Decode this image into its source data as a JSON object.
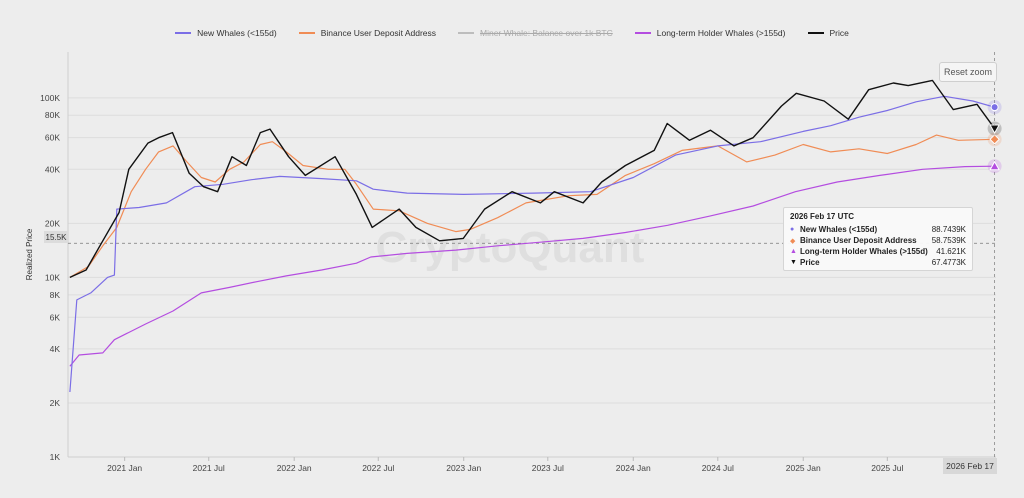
{
  "legend": [
    {
      "label": "New Whales (<155d)",
      "color": "#7b6ee6",
      "hidden": false
    },
    {
      "label": "Binance User Deposit Address",
      "color": "#f08c55",
      "hidden": false
    },
    {
      "label": "Miner Whale: Balance over 1k BTC",
      "color": "#bdbdbd",
      "hidden": true
    },
    {
      "label": "Long-term Holder Whales (>155d)",
      "color": "#b44de0",
      "hidden": false
    },
    {
      "label": "Price",
      "color": "#111111",
      "hidden": false
    }
  ],
  "reset_zoom_label": "Reset zoom",
  "watermark": "CryptoQuant",
  "horizontal_line_label": "15.5K",
  "date_flag": "2026 Feb 17",
  "tooltip": {
    "title": "2026 Feb 17 UTC",
    "rows": [
      {
        "marker": "●",
        "color": "#7b6ee6",
        "name": "New Whales (<155d)",
        "value": "88.7439K"
      },
      {
        "marker": "◆",
        "color": "#f08c55",
        "name": "Binance User Deposit Address",
        "value": "58.7539K"
      },
      {
        "marker": "▲",
        "color": "#b44de0",
        "name": "Long-term Holder Whales (>155d)",
        "value": "41.621K"
      },
      {
        "marker": "▼",
        "color": "#111111",
        "name": "Price",
        "value": "67.4773K"
      }
    ]
  },
  "chart_data": {
    "type": "line",
    "ylabel": "Realized Price",
    "yscale": "log",
    "ylim": [
      1000,
      180000
    ],
    "y_ticks": [
      {
        "v": 1000,
        "label": "1K"
      },
      {
        "v": 2000,
        "label": "2K"
      },
      {
        "v": 4000,
        "label": "4K"
      },
      {
        "v": 6000,
        "label": "6K"
      },
      {
        "v": 8000,
        "label": "8K"
      },
      {
        "v": 10000,
        "label": "10K"
      },
      {
        "v": 20000,
        "label": "20K"
      },
      {
        "v": 40000,
        "label": "40K"
      },
      {
        "v": 60000,
        "label": "60K"
      },
      {
        "v": 80000,
        "label": "80K"
      },
      {
        "v": 100000,
        "label": "100K"
      }
    ],
    "xlim": [
      "2020-09-01",
      "2026-02-20"
    ],
    "x_ticks": [
      {
        "d": "2021-01-01",
        "label": "2021 Jan"
      },
      {
        "d": "2021-07-01",
        "label": "2021 Jul"
      },
      {
        "d": "2022-01-01",
        "label": "2022 Jan"
      },
      {
        "d": "2022-07-01",
        "label": "2022 Jul"
      },
      {
        "d": "2023-01-01",
        "label": "2023 Jan"
      },
      {
        "d": "2023-07-01",
        "label": "2023 Jul"
      },
      {
        "d": "2024-01-01",
        "label": "2024 Jan"
      },
      {
        "d": "2024-07-01",
        "label": "2024 Jul"
      },
      {
        "d": "2025-01-01",
        "label": "2025 Jan"
      },
      {
        "d": "2025-07-01",
        "label": "2025 Jul"
      }
    ],
    "hline": 15500,
    "cursor_date": "2026-02-17",
    "series": [
      {
        "name": "New Whales (<155d)",
        "color": "#7b6ee6",
        "marker": "circle",
        "points": [
          [
            "2020-09-05",
            2300
          ],
          [
            "2020-09-20",
            7500
          ],
          [
            "2020-10-20",
            8200
          ],
          [
            "2020-11-25",
            10000
          ],
          [
            "2020-12-10",
            10300
          ],
          [
            "2020-12-15",
            24000
          ],
          [
            "2021-02-01",
            24500
          ],
          [
            "2021-04-01",
            26000
          ],
          [
            "2021-06-01",
            32000
          ],
          [
            "2021-08-01",
            33000
          ],
          [
            "2021-10-01",
            35000
          ],
          [
            "2021-12-01",
            36500
          ],
          [
            "2022-03-01",
            35500
          ],
          [
            "2022-05-15",
            34500
          ],
          [
            "2022-06-20",
            31000
          ],
          [
            "2022-09-01",
            29500
          ],
          [
            "2023-01-01",
            29000
          ],
          [
            "2023-06-01",
            29500
          ],
          [
            "2023-10-01",
            30000
          ],
          [
            "2024-01-01",
            36000
          ],
          [
            "2024-04-01",
            48000
          ],
          [
            "2024-07-01",
            54000
          ],
          [
            "2024-10-01",
            57000
          ],
          [
            "2025-01-01",
            65000
          ],
          [
            "2025-03-01",
            70000
          ],
          [
            "2025-05-01",
            78000
          ],
          [
            "2025-07-01",
            85000
          ],
          [
            "2025-09-01",
            95000
          ],
          [
            "2025-11-01",
            102000
          ],
          [
            "2026-01-01",
            96000
          ],
          [
            "2026-02-17",
            88744
          ]
        ]
      },
      {
        "name": "Binance User Deposit Address",
        "color": "#f08c55",
        "marker": "diamond",
        "points": [
          [
            "2020-09-05",
            10000
          ],
          [
            "2020-10-15",
            11500
          ],
          [
            "2020-11-15",
            15000
          ],
          [
            "2020-12-15",
            19000
          ],
          [
            "2021-01-15",
            30000
          ],
          [
            "2021-02-15",
            40000
          ],
          [
            "2021-03-15",
            50000
          ],
          [
            "2021-04-15",
            54000
          ],
          [
            "2021-05-15",
            44000
          ],
          [
            "2021-06-15",
            36000
          ],
          [
            "2021-07-15",
            34000
          ],
          [
            "2021-08-15",
            40000
          ],
          [
            "2021-09-15",
            44000
          ],
          [
            "2021-10-20",
            55000
          ],
          [
            "2021-11-15",
            57000
          ],
          [
            "2021-12-15",
            50000
          ],
          [
            "2022-01-20",
            42000
          ],
          [
            "2022-03-15",
            40000
          ],
          [
            "2022-04-20",
            40000
          ],
          [
            "2022-05-15",
            33000
          ],
          [
            "2022-06-20",
            24000
          ],
          [
            "2022-08-15",
            23500
          ],
          [
            "2022-10-15",
            20000
          ],
          [
            "2022-12-15",
            18000
          ],
          [
            "2023-01-15",
            18500
          ],
          [
            "2023-03-15",
            21500
          ],
          [
            "2023-05-15",
            26000
          ],
          [
            "2023-08-15",
            28500
          ],
          [
            "2023-10-15",
            29000
          ],
          [
            "2023-12-15",
            37000
          ],
          [
            "2024-02-15",
            43000
          ],
          [
            "2024-04-15",
            51000
          ],
          [
            "2024-07-01",
            54000
          ],
          [
            "2024-09-01",
            44000
          ],
          [
            "2024-11-01",
            48000
          ],
          [
            "2025-01-01",
            55000
          ],
          [
            "2025-03-01",
            50000
          ],
          [
            "2025-05-01",
            52000
          ],
          [
            "2025-07-01",
            49000
          ],
          [
            "2025-09-01",
            55000
          ],
          [
            "2025-10-15",
            62000
          ],
          [
            "2025-12-01",
            58000
          ],
          [
            "2026-02-17",
            58754
          ]
        ]
      },
      {
        "name": "Long-term Holder Whales (>155d)",
        "color": "#b44de0",
        "marker": "triangle-up",
        "points": [
          [
            "2020-09-05",
            3200
          ],
          [
            "2020-09-25",
            3700
          ],
          [
            "2020-11-15",
            3800
          ],
          [
            "2020-12-10",
            4500
          ],
          [
            "2021-02-15",
            5500
          ],
          [
            "2021-04-15",
            6500
          ],
          [
            "2021-06-15",
            8200
          ],
          [
            "2021-08-15",
            8800
          ],
          [
            "2021-10-15",
            9500
          ],
          [
            "2021-12-15",
            10200
          ],
          [
            "2022-03-01",
            11000
          ],
          [
            "2022-05-15",
            12000
          ],
          [
            "2022-06-15",
            13000
          ],
          [
            "2022-09-01",
            13600
          ],
          [
            "2022-12-15",
            14200
          ],
          [
            "2023-03-15",
            15000
          ],
          [
            "2023-06-15",
            15700
          ],
          [
            "2023-09-15",
            16500
          ],
          [
            "2023-12-15",
            17800
          ],
          [
            "2024-03-15",
            19500
          ],
          [
            "2024-06-15",
            22000
          ],
          [
            "2024-09-15",
            25000
          ],
          [
            "2024-12-15",
            30000
          ],
          [
            "2025-03-15",
            34000
          ],
          [
            "2025-06-15",
            37000
          ],
          [
            "2025-09-15",
            40000
          ],
          [
            "2025-12-15",
            41400
          ],
          [
            "2026-02-17",
            41621
          ]
        ]
      },
      {
        "name": "Price",
        "color": "#111111",
        "marker": "triangle-down",
        "points": [
          [
            "2020-09-05",
            10000
          ],
          [
            "2020-10-10",
            11000
          ],
          [
            "2020-11-15",
            16000
          ],
          [
            "2020-12-20",
            23000
          ],
          [
            "2021-01-10",
            40000
          ],
          [
            "2021-02-20",
            56000
          ],
          [
            "2021-03-15",
            60000
          ],
          [
            "2021-04-14",
            64000
          ],
          [
            "2021-05-20",
            38000
          ],
          [
            "2021-06-20",
            32000
          ],
          [
            "2021-07-20",
            30000
          ],
          [
            "2021-08-20",
            47000
          ],
          [
            "2021-09-20",
            42000
          ],
          [
            "2021-10-20",
            64000
          ],
          [
            "2021-11-10",
            67000
          ],
          [
            "2021-12-20",
            47000
          ],
          [
            "2022-01-25",
            37000
          ],
          [
            "2022-03-30",
            47000
          ],
          [
            "2022-05-15",
            29000
          ],
          [
            "2022-06-18",
            19000
          ],
          [
            "2022-08-15",
            24000
          ],
          [
            "2022-09-20",
            19000
          ],
          [
            "2022-11-10",
            16000
          ],
          [
            "2022-12-31",
            16500
          ],
          [
            "2023-02-15",
            24000
          ],
          [
            "2023-04-15",
            30000
          ],
          [
            "2023-06-15",
            26000
          ],
          [
            "2023-07-15",
            30000
          ],
          [
            "2023-09-15",
            26000
          ],
          [
            "2023-10-25",
            34000
          ],
          [
            "2023-12-15",
            42000
          ],
          [
            "2024-02-15",
            51000
          ],
          [
            "2024-03-14",
            72000
          ],
          [
            "2024-05-01",
            58000
          ],
          [
            "2024-06-15",
            66000
          ],
          [
            "2024-08-05",
            54000
          ],
          [
            "2024-09-15",
            60000
          ],
          [
            "2024-11-15",
            90000
          ],
          [
            "2024-12-17",
            106000
          ],
          [
            "2025-02-15",
            96000
          ],
          [
            "2025-04-08",
            76000
          ],
          [
            "2025-05-22",
            111000
          ],
          [
            "2025-07-14",
            121000
          ],
          [
            "2025-08-15",
            117000
          ],
          [
            "2025-10-06",
            125000
          ],
          [
            "2025-11-20",
            86000
          ],
          [
            "2026-01-10",
            92000
          ],
          [
            "2026-02-17",
            67477
          ]
        ]
      }
    ]
  }
}
